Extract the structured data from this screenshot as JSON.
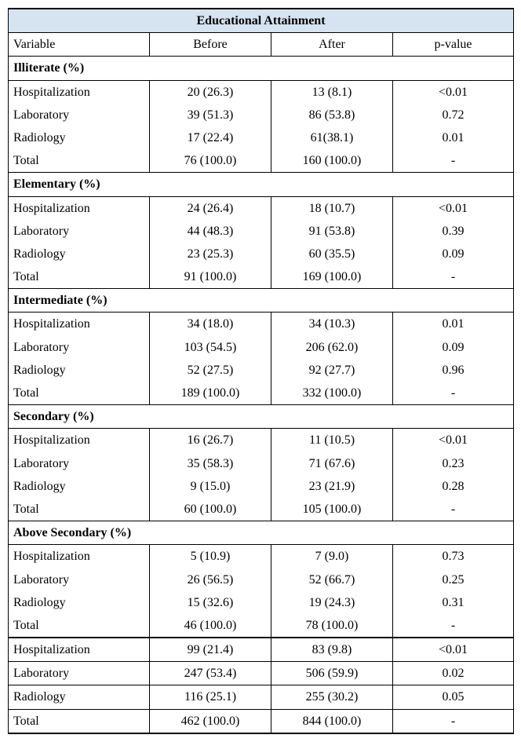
{
  "table": {
    "title": "Educational Attainment",
    "columns": [
      "Variable",
      "Before",
      "After",
      "p-value"
    ],
    "background_header": "#d6e3f0",
    "border_color": "#000000",
    "font_family": "Times New Roman",
    "font_size_pt": 12,
    "sections": [
      {
        "name": "Illiterate (%)",
        "rows": [
          {
            "variable": "Hospitalization",
            "before": "20 (26.3)",
            "after": "13 (8.1)",
            "p": "<0.01"
          },
          {
            "variable": "Laboratory",
            "before": "39 (51.3)",
            "after": "86 (53.8)",
            "p": "0.72"
          },
          {
            "variable": "Radiology",
            "before": "17 (22.4)",
            "after": "61(38.1)",
            "p": "0.01"
          },
          {
            "variable": "Total",
            "before": "76 (100.0)",
            "after": "160 (100.0)",
            "p": "-"
          }
        ]
      },
      {
        "name": "Elementary (%)",
        "rows": [
          {
            "variable": "Hospitalization",
            "before": "24 (26.4)",
            "after": "18 (10.7)",
            "p": "<0.01"
          },
          {
            "variable": "Laboratory",
            "before": "44 (48.3)",
            "after": "91 (53.8)",
            "p": "0.39"
          },
          {
            "variable": "Radiology",
            "before": "23 (25.3)",
            "after": "60 (35.5)",
            "p": "0.09"
          },
          {
            "variable": "Total",
            "before": "91 (100.0)",
            "after": "169 (100.0)",
            "p": "-"
          }
        ]
      },
      {
        "name": "Intermediate (%)",
        "rows": [
          {
            "variable": "Hospitalization",
            "before": "34 (18.0)",
            "after": "34 (10.3)",
            "p": "0.01"
          },
          {
            "variable": "Laboratory",
            "before": "103 (54.5)",
            "after": "206 (62.0)",
            "p": "0.09"
          },
          {
            "variable": "Radiology",
            "before": "52 (27.5)",
            "after": "92 (27.7)",
            "p": "0.96"
          },
          {
            "variable": "Total",
            "before": "189 (100.0)",
            "after": "332 (100.0)",
            "p": "-"
          }
        ]
      },
      {
        "name": "Secondary (%)",
        "rows": [
          {
            "variable": "Hospitalization",
            "before": "16 (26.7)",
            "after": "11 (10.5)",
            "p": "<0.01"
          },
          {
            "variable": "Laboratory",
            "before": "35 (58.3)",
            "after": "71 (67.6)",
            "p": "0.23"
          },
          {
            "variable": "Radiology",
            "before": "9 (15.0)",
            "after": "23 (21.9)",
            "p": "0.28"
          },
          {
            "variable": "Total",
            "before": "60 (100.0)",
            "after": "105 (100.0)",
            "p": "-"
          }
        ]
      },
      {
        "name": "Above Secondary (%)",
        "rows": [
          {
            "variable": "Hospitalization",
            "before": "5 (10.9)",
            "after": "7 (9.0)",
            "p": "0.73"
          },
          {
            "variable": "Laboratory",
            "before": "26 (56.5)",
            "after": "52 (66.7)",
            "p": "0.25"
          },
          {
            "variable": "Radiology",
            "before": "15 (32.6)",
            "after": "19 (24.3)",
            "p": "0.31"
          },
          {
            "variable": "Total",
            "before": "46 (100.0)",
            "after": "78 (100.0)",
            "p": "-"
          }
        ]
      }
    ],
    "grand": [
      {
        "variable": "Hospitalization",
        "before": "99 (21.4)",
        "after": "83 (9.8)",
        "p": "<0.01"
      },
      {
        "variable": "Laboratory",
        "before": "247 (53.4)",
        "after": "506 (59.9)",
        "p": "0.02"
      },
      {
        "variable": "Radiology",
        "before": "116 (25.1)",
        "after": "255 (30.2)",
        "p": "0.05"
      },
      {
        "variable": "Total",
        "before": "462 (100.0)",
        "after": "844 (100.0)",
        "p": "-"
      }
    ]
  }
}
